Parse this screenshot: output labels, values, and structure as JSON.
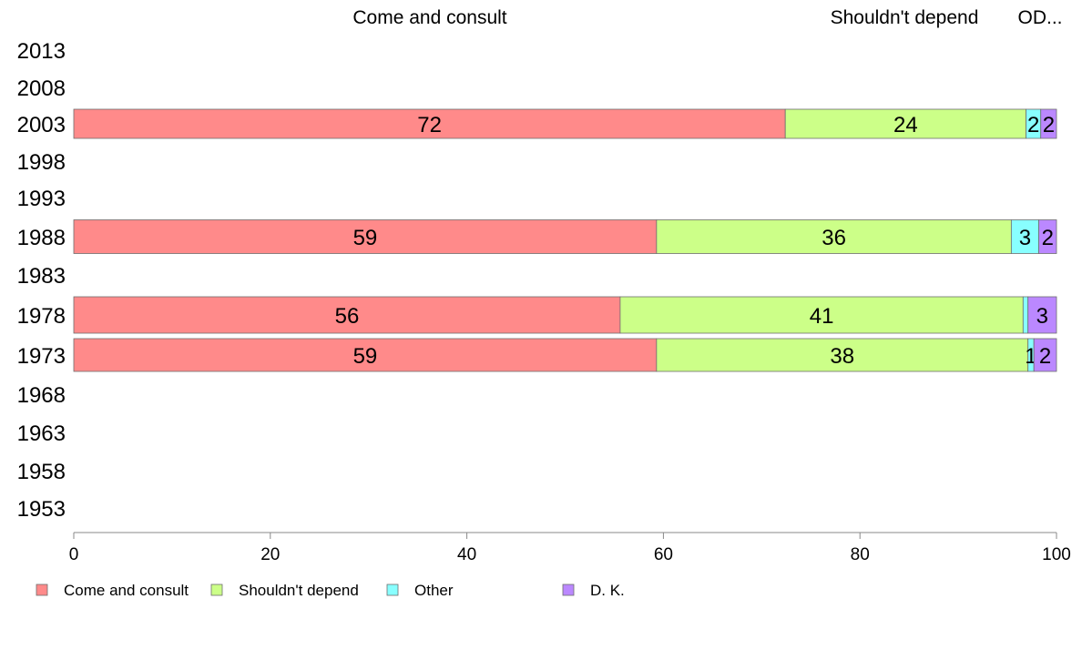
{
  "chart_data": {
    "type": "bar",
    "orientation": "horizontal",
    "stacked": true,
    "categories": [
      "2013",
      "2008",
      "2003",
      "1998",
      "1993",
      "1988",
      "1983",
      "1978",
      "1973",
      "1968",
      "1963",
      "1958",
      "1953"
    ],
    "series": [
      {
        "name": "Come and consult",
        "color": "#ff8a8a",
        "values": [
          null,
          null,
          72.4,
          null,
          null,
          59.3,
          null,
          55.6,
          59.3,
          null,
          null,
          null,
          null
        ],
        "labels": [
          "",
          "",
          "72",
          "",
          "",
          "59",
          "",
          "56",
          "59",
          "",
          "",
          "",
          ""
        ]
      },
      {
        "name": "Shouldn't depend",
        "color": "#ccff88",
        "values": [
          null,
          null,
          24.5,
          null,
          null,
          36.1,
          null,
          41.0,
          37.8,
          null,
          null,
          null,
          null
        ],
        "labels": [
          "",
          "",
          "24",
          "",
          "",
          "36",
          "",
          "41",
          "38",
          "",
          "",
          "",
          ""
        ]
      },
      {
        "name": "Other",
        "color": "#88ffff",
        "values": [
          null,
          null,
          1.5,
          null,
          null,
          2.8,
          null,
          0.5,
          0.6,
          null,
          null,
          null,
          null
        ],
        "labels": [
          "",
          "",
          "2",
          "",
          "",
          "3",
          "",
          "",
          "1",
          "",
          "",
          "",
          ""
        ]
      },
      {
        "name": "D. K.",
        "color": "#bb88ff",
        "values": [
          null,
          null,
          1.6,
          null,
          null,
          1.8,
          null,
          2.9,
          2.3,
          null,
          null,
          null,
          null
        ],
        "labels": [
          "",
          "",
          "2",
          "",
          "",
          "2",
          "",
          "3",
          "2",
          "",
          "",
          "",
          ""
        ]
      }
    ],
    "top_labels": [
      "Come and consult",
      "Shouldn't depend",
      "OD..."
    ],
    "xlim": [
      0,
      100
    ],
    "xticks": [
      "0",
      "20",
      "40",
      "60",
      "80",
      "100"
    ],
    "grid": false,
    "legend_position": "bottom"
  }
}
